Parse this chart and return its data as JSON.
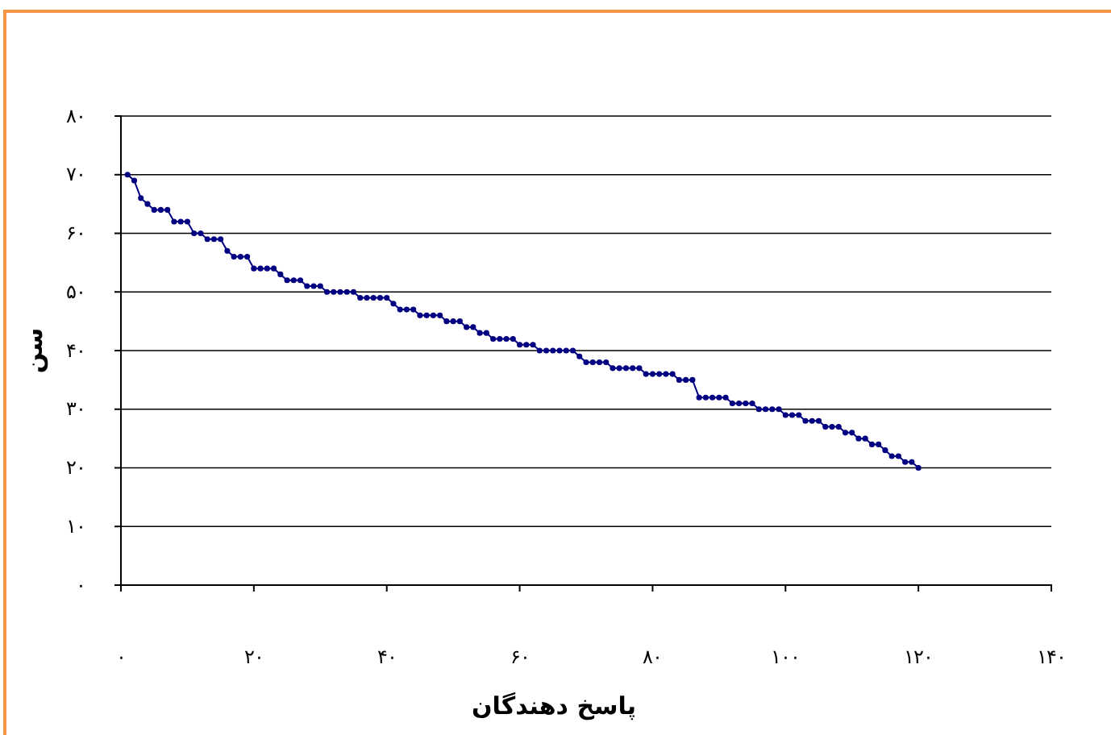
{
  "chart_data": {
    "type": "line",
    "xlabel": "پاسخ دهندگان",
    "ylabel": "سن",
    "x": [
      1,
      2,
      3,
      4,
      5,
      6,
      7,
      8,
      9,
      10,
      11,
      12,
      13,
      14,
      15,
      16,
      17,
      18,
      19,
      20,
      21,
      22,
      23,
      24,
      25,
      26,
      27,
      28,
      29,
      30,
      31,
      32,
      33,
      34,
      35,
      36,
      37,
      38,
      39,
      40,
      41,
      42,
      43,
      44,
      45,
      46,
      47,
      48,
      49,
      50,
      51,
      52,
      53,
      54,
      55,
      56,
      57,
      58,
      59,
      60,
      61,
      62,
      63,
      64,
      65,
      66,
      67,
      68,
      69,
      70,
      71,
      72,
      73,
      74,
      75,
      76,
      77,
      78,
      79,
      80,
      81,
      82,
      83,
      84,
      85,
      86,
      87,
      88,
      89,
      90,
      91,
      92,
      93,
      94,
      95,
      96,
      97,
      98,
      99,
      100,
      101,
      102,
      103,
      104,
      105,
      106,
      107,
      108,
      109,
      110,
      111,
      112,
      113,
      114,
      115,
      116,
      117,
      118,
      119,
      120
    ],
    "series": [
      {
        "color": "#000080",
        "values": [
          70,
          69,
          66,
          65,
          64,
          64,
          64,
          62,
          62,
          62,
          60,
          60,
          59,
          59,
          59,
          57,
          56,
          56,
          56,
          54,
          54,
          54,
          54,
          53,
          52,
          52,
          52,
          51,
          51,
          51,
          50,
          50,
          50,
          50,
          50,
          49,
          49,
          49,
          49,
          49,
          48,
          47,
          47,
          47,
          46,
          46,
          46,
          46,
          45,
          45,
          45,
          44,
          44,
          43,
          43,
          42,
          42,
          42,
          42,
          41,
          41,
          41,
          40,
          40,
          40,
          40,
          40,
          40,
          39,
          38,
          38,
          38,
          38,
          37,
          37,
          37,
          37,
          37,
          36,
          36,
          36,
          36,
          36,
          35,
          35,
          35,
          32,
          32,
          32,
          32,
          32,
          31,
          31,
          31,
          31,
          30,
          30,
          30,
          30,
          29,
          29,
          29,
          28,
          28,
          28,
          27,
          27,
          27,
          26,
          26,
          25,
          25,
          24,
          24,
          23,
          22,
          22,
          21,
          21,
          20
        ]
      }
    ],
    "xlim": [
      0,
      140
    ],
    "xticks": [
      {
        "value": 0,
        "label": "۰"
      },
      {
        "value": 20,
        "label": "۲۰"
      },
      {
        "value": 40,
        "label": "۴۰"
      },
      {
        "value": 60,
        "label": "۶۰"
      },
      {
        "value": 80,
        "label": "۸۰"
      },
      {
        "value": 100,
        "label": "۱۰۰"
      },
      {
        "value": 120,
        "label": "۱۲۰"
      },
      {
        "value": 140,
        "label": "۱۴۰"
      }
    ],
    "ylim": [
      0,
      80
    ],
    "yticks": [
      {
        "value": 0,
        "label": "۰"
      },
      {
        "value": 10,
        "label": "۱۰"
      },
      {
        "value": 20,
        "label": "۲۰"
      },
      {
        "value": 30,
        "label": "۳۰"
      },
      {
        "value": 40,
        "label": "۴۰"
      },
      {
        "value": 50,
        "label": "۵۰"
      },
      {
        "value": 60,
        "label": "۶۰"
      },
      {
        "value": 70,
        "label": "۷۰"
      },
      {
        "value": 80,
        "label": "۸۰"
      }
    ],
    "grid": "y",
    "marker": "circle",
    "line_style": "solid"
  }
}
